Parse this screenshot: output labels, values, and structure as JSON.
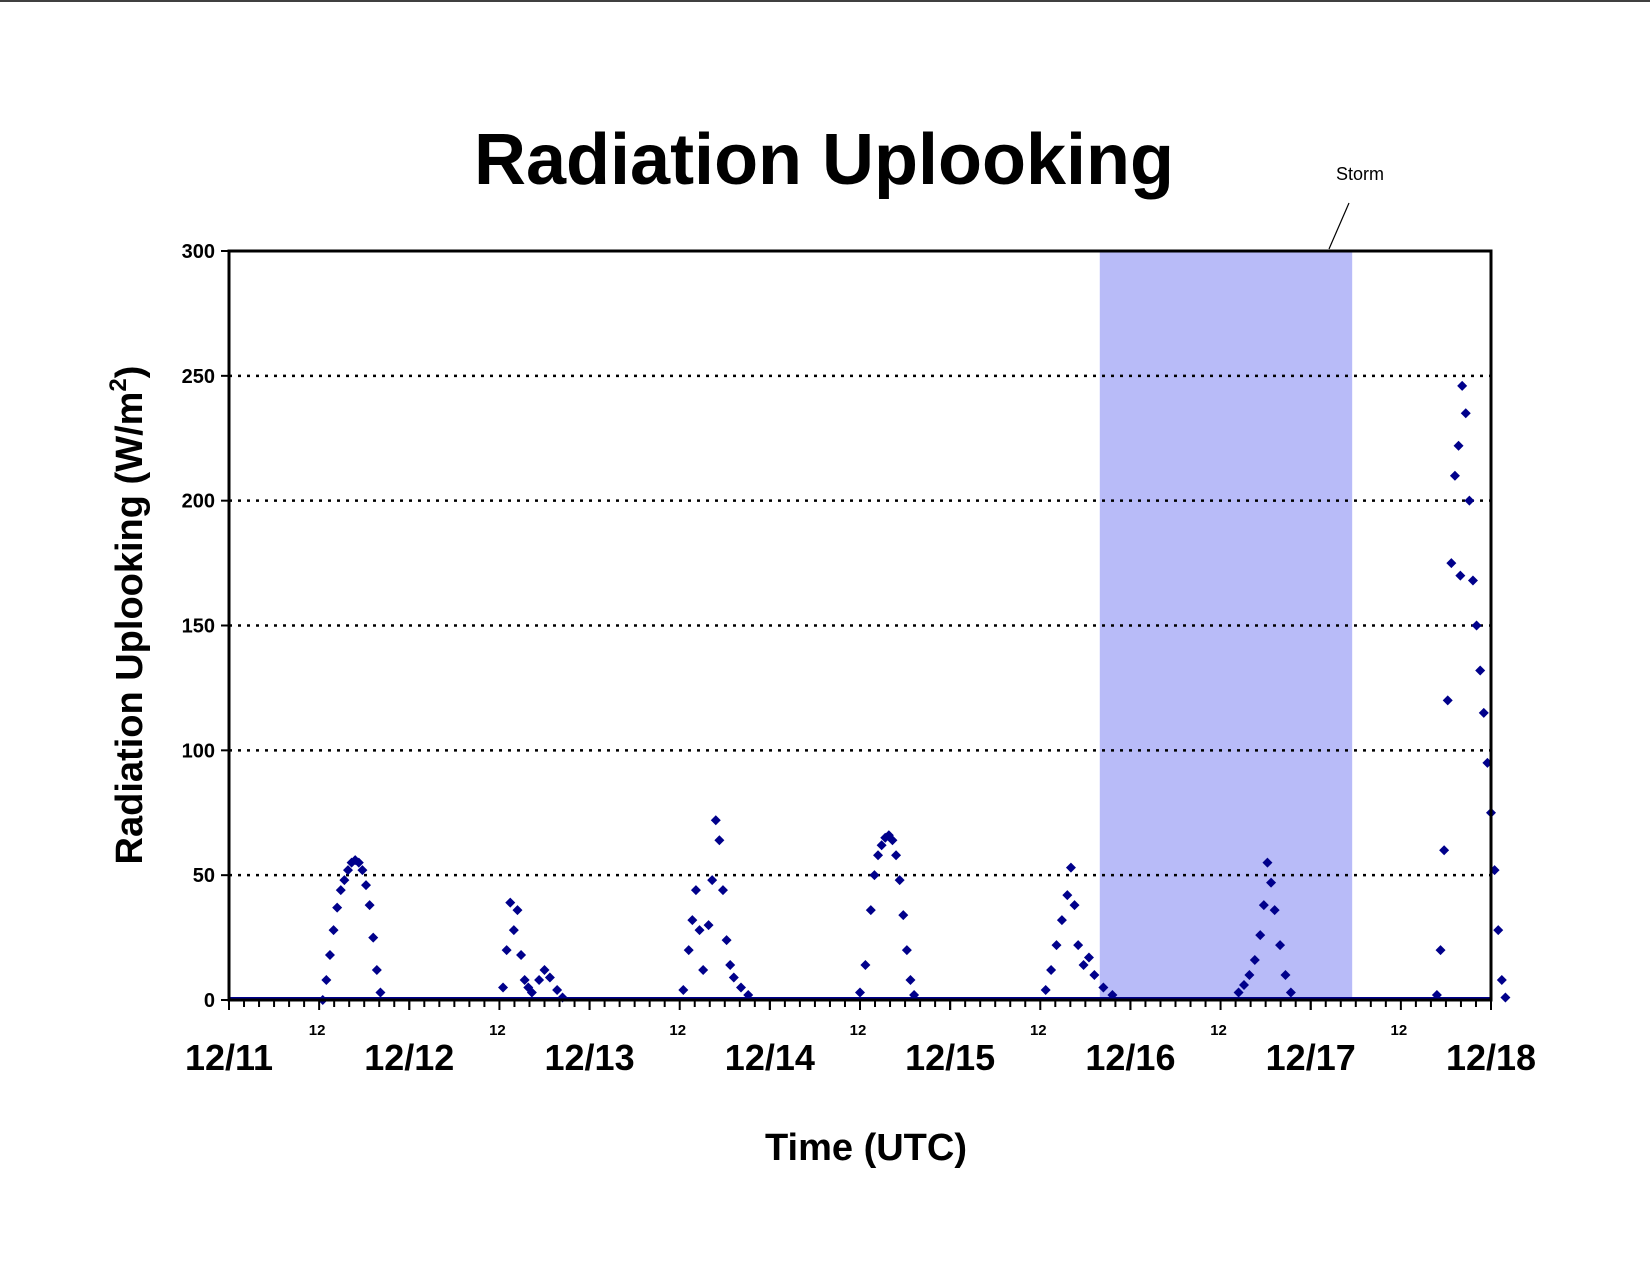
{
  "chart_data": {
    "type": "scatter",
    "title": "Radiation Uplooking",
    "xlabel": "Time (UTC)",
    "ylabel_main": "Radiation Uplooking (W/m",
    "ylabel_sup": "2",
    "ylabel_close": ")",
    "xlim": [
      0,
      7
    ],
    "ylim": [
      0,
      300
    ],
    "yticks": [
      0,
      50,
      100,
      150,
      200,
      250,
      300
    ],
    "ytick_labels": [
      "0",
      "50",
      "100",
      "150",
      "200",
      "250",
      "300"
    ],
    "xtick_labels": [
      "12/11",
      "12/12",
      "12/13",
      "12/14",
      "12/15",
      "12/16",
      "12/17",
      "12/18"
    ],
    "hour_tick_label": "12",
    "grid": "horizontal dotted",
    "marker": "diamond",
    "colors": {
      "series": "#00008B",
      "storm": "#B8BBF8",
      "axis": "#000000"
    },
    "storm_span": [
      4.83,
      6.23
    ],
    "storm_label": "Storm",
    "series": [
      {
        "values": [
          [
            0.52,
            0
          ],
          [
            0.54,
            8
          ],
          [
            0.56,
            18
          ],
          [
            0.58,
            28
          ],
          [
            0.6,
            37
          ],
          [
            0.62,
            44
          ],
          [
            0.64,
            48
          ],
          [
            0.66,
            52
          ],
          [
            0.68,
            55
          ],
          [
            0.7,
            56
          ],
          [
            0.72,
            55
          ],
          [
            0.74,
            52
          ],
          [
            0.76,
            46
          ],
          [
            0.78,
            38
          ],
          [
            0.8,
            25
          ],
          [
            0.82,
            12
          ],
          [
            0.84,
            3
          ],
          [
            1.52,
            5
          ],
          [
            1.54,
            20
          ],
          [
            1.56,
            39
          ],
          [
            1.58,
            28
          ],
          [
            1.6,
            36
          ],
          [
            1.62,
            18
          ],
          [
            1.64,
            8
          ],
          [
            1.66,
            5
          ],
          [
            1.68,
            3
          ],
          [
            1.72,
            8
          ],
          [
            1.75,
            12
          ],
          [
            1.78,
            9
          ],
          [
            1.82,
            4
          ],
          [
            1.85,
            1
          ],
          [
            2.52,
            4
          ],
          [
            2.55,
            20
          ],
          [
            2.57,
            32
          ],
          [
            2.59,
            44
          ],
          [
            2.61,
            28
          ],
          [
            2.63,
            12
          ],
          [
            2.66,
            30
          ],
          [
            2.68,
            48
          ],
          [
            2.7,
            72
          ],
          [
            2.72,
            64
          ],
          [
            2.74,
            44
          ],
          [
            2.76,
            24
          ],
          [
            2.78,
            14
          ],
          [
            2.8,
            9
          ],
          [
            2.84,
            5
          ],
          [
            2.88,
            2
          ],
          [
            3.5,
            3
          ],
          [
            3.53,
            14
          ],
          [
            3.56,
            36
          ],
          [
            3.58,
            50
          ],
          [
            3.6,
            58
          ],
          [
            3.62,
            62
          ],
          [
            3.64,
            65
          ],
          [
            3.66,
            66
          ],
          [
            3.68,
            64
          ],
          [
            3.7,
            58
          ],
          [
            3.72,
            48
          ],
          [
            3.74,
            34
          ],
          [
            3.76,
            20
          ],
          [
            3.78,
            8
          ],
          [
            3.8,
            2
          ],
          [
            4.53,
            4
          ],
          [
            4.56,
            12
          ],
          [
            4.59,
            22
          ],
          [
            4.62,
            32
          ],
          [
            4.65,
            42
          ],
          [
            4.67,
            53
          ],
          [
            4.69,
            38
          ],
          [
            4.71,
            22
          ],
          [
            4.74,
            14
          ],
          [
            4.77,
            17
          ],
          [
            4.8,
            10
          ],
          [
            4.85,
            5
          ],
          [
            4.9,
            2
          ],
          [
            5.6,
            3
          ],
          [
            5.63,
            6
          ],
          [
            5.66,
            10
          ],
          [
            5.69,
            16
          ],
          [
            5.72,
            26
          ],
          [
            5.74,
            38
          ],
          [
            5.76,
            55
          ],
          [
            5.78,
            47
          ],
          [
            5.8,
            36
          ],
          [
            5.83,
            22
          ],
          [
            5.86,
            10
          ],
          [
            5.89,
            3
          ],
          [
            6.7,
            2
          ],
          [
            6.72,
            20
          ],
          [
            6.74,
            60
          ],
          [
            6.76,
            120
          ],
          [
            6.78,
            175
          ],
          [
            6.8,
            210
          ],
          [
            6.82,
            222
          ],
          [
            6.83,
            170
          ],
          [
            6.84,
            246
          ],
          [
            6.86,
            235
          ],
          [
            6.88,
            200
          ],
          [
            6.9,
            168
          ],
          [
            6.92,
            150
          ],
          [
            6.94,
            132
          ],
          [
            6.96,
            115
          ],
          [
            6.98,
            95
          ],
          [
            7.0,
            75
          ],
          [
            7.02,
            52
          ],
          [
            7.04,
            28
          ],
          [
            7.06,
            8
          ],
          [
            7.08,
            1
          ]
        ]
      }
    ]
  }
}
